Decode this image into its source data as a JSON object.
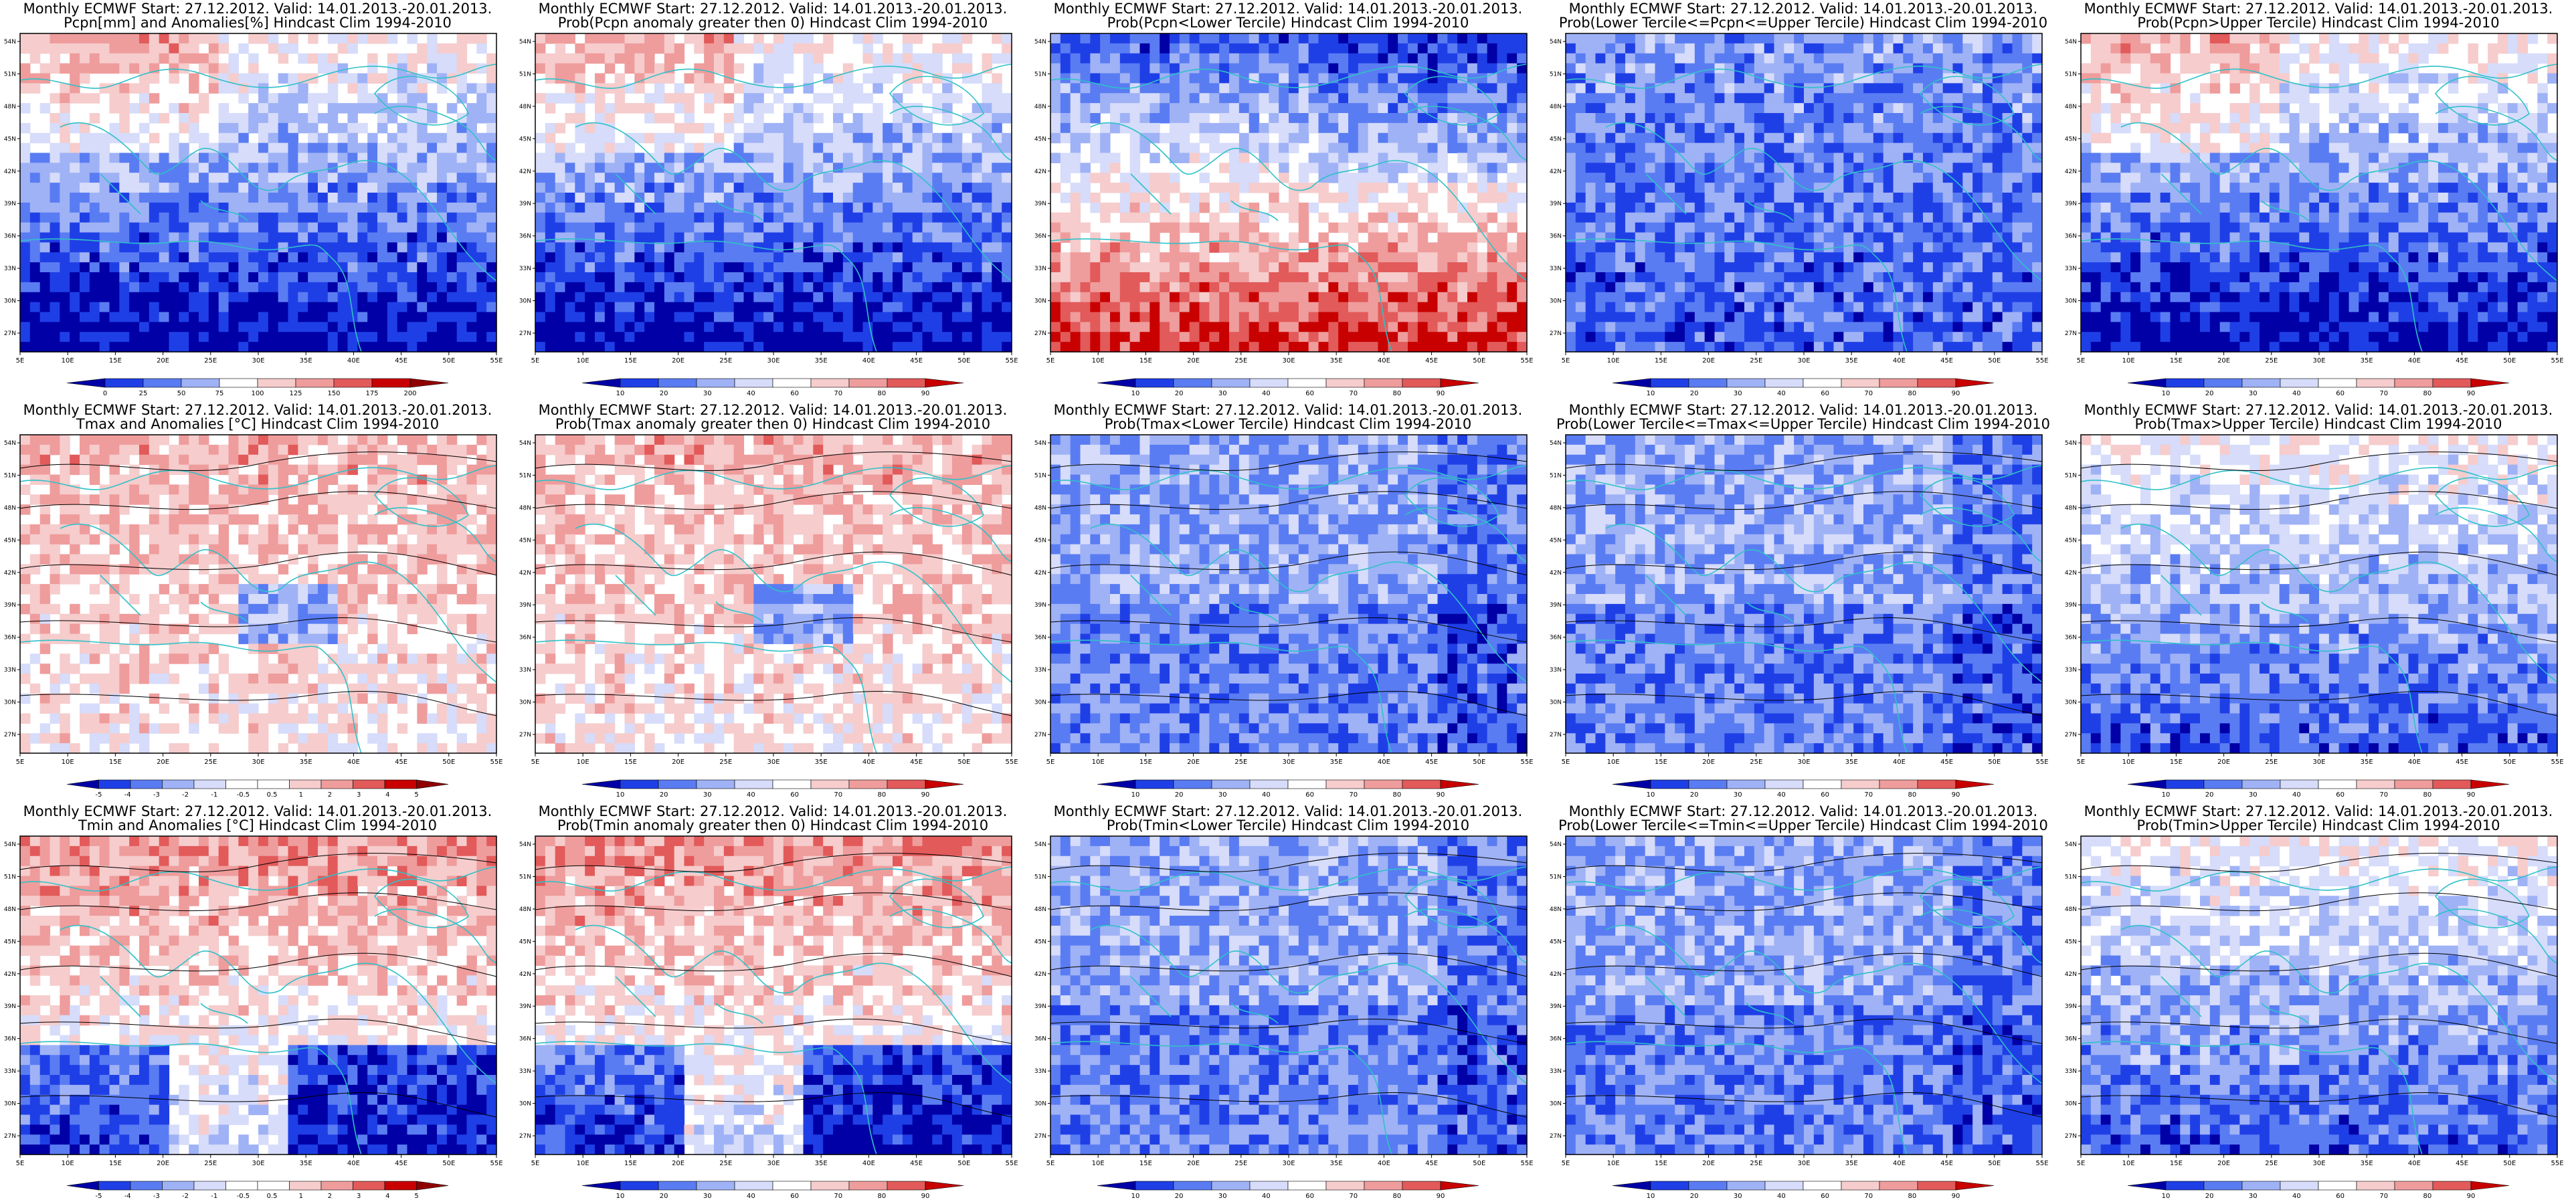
{
  "ticks": {
    "x": [
      "5E",
      "10E",
      "15E",
      "20E",
      "25E",
      "30E",
      "35E",
      "40E",
      "45E",
      "50E",
      "55E"
    ],
    "y": [
      "54N",
      "51N",
      "48N",
      "45N",
      "42N",
      "39N",
      "36N",
      "33N",
      "30N",
      "27N"
    ]
  },
  "colors": {
    "coast": "#2fc1c8",
    "contour": "#000000",
    "prob_scale": [
      "#0000a6",
      "#1f3fe6",
      "#5a7cf2",
      "#9fb2f6",
      "#d6dcfa",
      "#ffffff",
      "#f6cccc",
      "#ef9c9c",
      "#e25a5a",
      "#c80000"
    ]
  },
  "panels": [
    {
      "id": "pcpn-anom",
      "title1": "Monthly ECMWF Start: 27.12.2012. Valid: 14.01.2013.-20.01.2013.",
      "title2": "Pcpn[mm] and Anomalies[%] Hindcast Clim 1994-2010",
      "legend_labels": [
        "0",
        "25",
        "50",
        "75",
        "100",
        "125",
        "150",
        "175",
        "200"
      ],
      "legend_colors": [
        "#0000a6",
        "#1f3fe6",
        "#5a7cf2",
        "#9fb2f6",
        "#ffffff",
        "#f6cccc",
        "#ef9c9c",
        "#e25a5a",
        "#c80000",
        "#8f0000"
      ],
      "field": "pcpn",
      "contours": false
    },
    {
      "id": "pcpn-prob-pos",
      "title1": "Monthly ECMWF Start: 27.12.2012. Valid: 14.01.2013.-20.01.2013.",
      "title2": "Prob(Pcpn anomaly greater then 0) Hindcast Clim 1994-2010",
      "legend_labels": [
        "10",
        "20",
        "30",
        "40",
        "60",
        "70",
        "80",
        "90"
      ],
      "field": "pcpn",
      "contours": false
    },
    {
      "id": "pcpn-prob-lower",
      "title1": "Monthly ECMWF Start: 27.12.2012. Valid: 14.01.2013.-20.01.2013.",
      "title2": "Prob(Pcpn<Lower Tercile) Hindcast Clim 1994-2010",
      "legend_labels": [
        "10",
        "20",
        "30",
        "40",
        "60",
        "70",
        "80",
        "90"
      ],
      "field": "lower",
      "contours": false
    },
    {
      "id": "pcpn-prob-middle",
      "title1": "Monthly ECMWF Start: 27.12.2012. Valid: 14.01.2013.-20.01.2013.",
      "title2": "Prob(Lower Tercile<=Pcpn<=Upper Tercile) Hindcast Clim 1994-2010",
      "legend_labels": [
        "10",
        "20",
        "30",
        "40",
        "60",
        "70",
        "80",
        "90"
      ],
      "field": "mid",
      "contours": false
    },
    {
      "id": "pcpn-prob-upper",
      "title1": "Monthly ECMWF Start: 27.12.2012. Valid: 14.01.2013.-20.01.2013.",
      "title2": "Prob(Pcpn>Upper Tercile) Hindcast Clim 1994-2010",
      "legend_labels": [
        "10",
        "20",
        "30",
        "40",
        "60",
        "70",
        "80",
        "90"
      ],
      "field": "pcpn",
      "contours": false
    },
    {
      "id": "tmax-anom",
      "title1": "Monthly ECMWF Start: 27.12.2012. Valid: 14.01.2013.-20.01.2013.",
      "title2": "Tmax and Anomalies [°C] Hindcast Clim 1994-2010",
      "legend_labels": [
        "-5",
        "-4",
        "-3",
        "-2",
        "-1",
        "-0.5",
        "0.5",
        "1",
        "2",
        "3",
        "4",
        "5"
      ],
      "legend_colors": [
        "#0000a6",
        "#1f3fe6",
        "#5a7cf2",
        "#9fb2f6",
        "#d6dcfa",
        "#ffffff",
        "#ffffff",
        "#f6cccc",
        "#ef9c9c",
        "#e25a5a",
        "#c80000",
        "#8f0000"
      ],
      "field": "warm",
      "contours": true
    },
    {
      "id": "tmax-prob-pos",
      "title1": "Monthly ECMWF Start: 27.12.2012. Valid: 14.01.2013.-20.01.2013.",
      "title2": "Prob(Tmax anomaly greater then 0) Hindcast Clim 1994-2010",
      "legend_labels": [
        "10",
        "20",
        "30",
        "40",
        "60",
        "70",
        "80",
        "90"
      ],
      "field": "warm",
      "contours": true
    },
    {
      "id": "tmax-prob-lower",
      "title1": "Monthly ECMWF Start: 27.12.2012. Valid: 14.01.2013.-20.01.2013.",
      "title2": "Prob(Tmax<Lower Tercile) Hindcast Clim 1994-2010",
      "legend_labels": [
        "10",
        "20",
        "30",
        "40",
        "60",
        "70",
        "80",
        "90"
      ],
      "field": "cool",
      "contours": true
    },
    {
      "id": "tmax-prob-middle",
      "title1": "Monthly ECMWF Start: 27.12.2012. Valid: 14.01.2013.-20.01.2013.",
      "title2": "Prob(Lower Tercile<=Tmax<=Upper Tercile) Hindcast Clim 1994-2010",
      "legend_labels": [
        "10",
        "20",
        "30",
        "40",
        "60",
        "70",
        "80",
        "90"
      ],
      "field": "cool",
      "contours": true
    },
    {
      "id": "tmax-prob-upper",
      "title1": "Monthly ECMWF Start: 27.12.2012. Valid: 14.01.2013.-20.01.2013.",
      "title2": "Prob(Tmax>Upper Tercile) Hindcast Clim 1994-2010",
      "legend_labels": [
        "10",
        "20",
        "30",
        "40",
        "60",
        "70",
        "80",
        "90"
      ],
      "field": "coolsouth",
      "contours": true
    },
    {
      "id": "tmin-anom",
      "title1": "Monthly ECMWF Start: 27.12.2012. Valid: 14.01.2013.-20.01.2013.",
      "title2": "Tmin and Anomalies [°C] Hindcast Clim 1994-2010",
      "legend_labels": [
        "-5",
        "-4",
        "-3",
        "-2",
        "-1",
        "-0.5",
        "0.5",
        "1",
        "2",
        "3",
        "4",
        "5"
      ],
      "legend_colors": [
        "#0000a6",
        "#1f3fe6",
        "#5a7cf2",
        "#9fb2f6",
        "#d6dcfa",
        "#ffffff",
        "#ffffff",
        "#f6cccc",
        "#ef9c9c",
        "#e25a5a",
        "#c80000",
        "#8f0000"
      ],
      "field": "warmnorth",
      "contours": true
    },
    {
      "id": "tmin-prob-pos",
      "title1": "Monthly ECMWF Start: 27.12.2012. Valid: 14.01.2013.-20.01.2013.",
      "title2": "Prob(Tmin anomaly greater then 0) Hindcast Clim 1994-2010",
      "legend_labels": [
        "10",
        "20",
        "30",
        "40",
        "60",
        "70",
        "80",
        "90"
      ],
      "field": "warmnorth",
      "contours": true
    },
    {
      "id": "tmin-prob-lower",
      "title1": "Monthly ECMWF Start: 27.12.2012. Valid: 14.01.2013.-20.01.2013.",
      "title2": "Prob(Tmin<Lower Tercile) Hindcast Clim 1994-2010",
      "legend_labels": [
        "10",
        "20",
        "30",
        "40",
        "60",
        "70",
        "80",
        "90"
      ],
      "field": "cool",
      "contours": true
    },
    {
      "id": "tmin-prob-middle",
      "title1": "Monthly ECMWF Start: 27.12.2012. Valid: 14.01.2013.-20.01.2013.",
      "title2": "Prob(Lower Tercile<=Tmin<=Upper Tercile) Hindcast Clim 1994-2010",
      "legend_labels": [
        "10",
        "20",
        "30",
        "40",
        "60",
        "70",
        "80",
        "90"
      ],
      "field": "cool",
      "contours": true
    },
    {
      "id": "tmin-prob-upper",
      "title1": "Monthly ECMWF Start: 27.12.2012. Valid: 14.01.2013.-20.01.2013.",
      "title2": "Prob(Tmin>Upper Tercile) Hindcast Clim 1994-2010",
      "legend_labels": [
        "10",
        "20",
        "30",
        "40",
        "60",
        "70",
        "80",
        "90"
      ],
      "field": "coolsouth",
      "contours": true
    }
  ]
}
